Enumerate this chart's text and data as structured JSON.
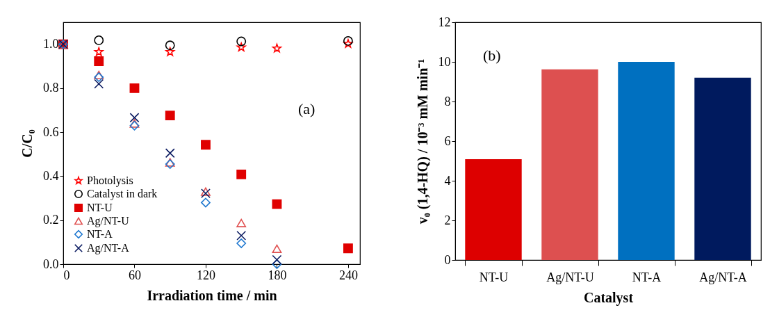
{
  "chart_data": [
    {
      "type": "scatter",
      "xlabel": "Irradiation time / min",
      "ylabel": "C/C₀",
      "xlim": [
        0,
        250
      ],
      "ylim": [
        0,
        1.1
      ],
      "xticks": [
        0,
        60,
        120,
        180,
        240
      ],
      "yticks": [
        {
          "value": 0,
          "label": "0.0"
        },
        {
          "value": 0.2,
          "label": "0.2"
        },
        {
          "value": 0.4,
          "label": "0.4"
        },
        {
          "value": 0.6,
          "label": "0.6"
        },
        {
          "value": 0.8,
          "label": "0.8"
        },
        {
          "value": 1.0,
          "label": "1.0"
        }
      ],
      "legend": "bottom left",
      "grid": false,
      "annotations": [
        "(a)"
      ],
      "series": [
        {
          "name": "Photolysis",
          "color": "#ff0000",
          "marker": "star",
          "x": [
            30,
            90,
            150,
            180,
            240
          ],
          "values": [
            0.965,
            0.965,
            0.986,
            0.981,
            1.002
          ]
        },
        {
          "name": "Catalyst in dark",
          "color": "#000000",
          "marker": "circle",
          "x": [
            30,
            90,
            150,
            240
          ],
          "values": [
            1.018,
            0.995,
            1.013,
            1.015
          ]
        },
        {
          "name": "NT-U",
          "color": "#e00000",
          "marker": "square",
          "x": [
            0,
            30,
            60,
            90,
            120,
            150,
            180,
            240
          ],
          "values": [
            1.0,
            0.923,
            0.8,
            0.676,
            0.543,
            0.408,
            0.273,
            0.072
          ]
        },
        {
          "name": "Ag/NT-U",
          "color": "#e05050",
          "marker": "triangle",
          "x": [
            0,
            30,
            60,
            90,
            120,
            150,
            180
          ],
          "values": [
            1.0,
            0.86,
            0.64,
            0.463,
            0.33,
            0.187,
            0.07
          ]
        },
        {
          "name": "NT-A",
          "color": "#1f78d0",
          "marker": "diamond",
          "x": [
            0,
            30,
            60,
            90,
            120,
            150,
            180
          ],
          "values": [
            1.0,
            0.85,
            0.63,
            0.455,
            0.28,
            0.095,
            0.0
          ]
        },
        {
          "name": "Ag/NT-A",
          "color": "#0a1a60",
          "marker": "cross",
          "x": [
            0,
            30,
            60,
            90,
            120,
            150,
            180
          ],
          "values": [
            1.0,
            0.82,
            0.666,
            0.505,
            0.322,
            0.13,
            0.02
          ]
        }
      ]
    },
    {
      "type": "bar",
      "xlabel": "Catalyst",
      "ylabel": "v₀ (1,4-HQ) / 10⁻³ mM min⁻¹",
      "categories": [
        "NT-U",
        "Ag/NT-U",
        "NT-A",
        "Ag/NT-A"
      ],
      "values": [
        5.09,
        9.62,
        10.0,
        9.2
      ],
      "colors": [
        "#dd0000",
        "#dd5050",
        "#0070c0",
        "#001a5e"
      ],
      "ylim": [
        0,
        12
      ],
      "yticks": [
        0,
        2,
        4,
        6,
        8,
        10,
        12
      ],
      "grid": false,
      "annotations": [
        "(b)"
      ]
    }
  ]
}
